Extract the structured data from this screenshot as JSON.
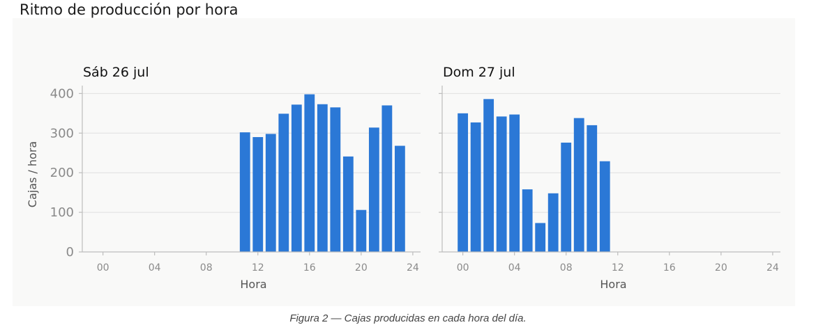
{
  "page": {
    "title": "Ritmo de producción por hora",
    "caption": "Figura 2 — Cajas producidas en cada hora del día."
  },
  "colors": {
    "bar": "#2b78d6",
    "grid": "#e0e0e0",
    "axis": "#bdbdbd",
    "panel_background": "#f9f9f8"
  },
  "chart_data": [
    {
      "type": "bar",
      "title": "Sáb 26 jul",
      "xlabel": "Hora",
      "ylabel": "Cajas / hora",
      "x_ticks": [
        "00",
        "04",
        "08",
        "12",
        "16",
        "20",
        "24"
      ],
      "x_tick_values": [
        0,
        4,
        8,
        12,
        16,
        20,
        24
      ],
      "y_ticks": [
        "0",
        "100",
        "200",
        "300",
        "400"
      ],
      "y_tick_values": [
        0,
        100,
        200,
        300,
        400
      ],
      "xlim": [
        -1.6,
        24.6
      ],
      "ylim": [
        0,
        420
      ],
      "grid": "horizontal",
      "bars": [
        {
          "hour": 11,
          "value": 302
        },
        {
          "hour": 12,
          "value": 290
        },
        {
          "hour": 13,
          "value": 298
        },
        {
          "hour": 14,
          "value": 349
        },
        {
          "hour": 15,
          "value": 372
        },
        {
          "hour": 16,
          "value": 398
        },
        {
          "hour": 17,
          "value": 373
        },
        {
          "hour": 18,
          "value": 365
        },
        {
          "hour": 19,
          "value": 241
        },
        {
          "hour": 20,
          "value": 106
        },
        {
          "hour": 21,
          "value": 314
        },
        {
          "hour": 22,
          "value": 370
        },
        {
          "hour": 23,
          "value": 268
        }
      ]
    },
    {
      "type": "bar",
      "title": "Dom 27 jul",
      "xlabel": "Hora",
      "ylabel": "",
      "x_ticks": [
        "00",
        "04",
        "08",
        "12",
        "16",
        "20",
        "24"
      ],
      "x_tick_values": [
        0,
        4,
        8,
        12,
        16,
        20,
        24
      ],
      "y_ticks": [],
      "y_tick_values": [
        0,
        100,
        200,
        300,
        400
      ],
      "xlim": [
        -1.6,
        24.6
      ],
      "ylim": [
        0,
        420
      ],
      "grid": "horizontal",
      "bars": [
        {
          "hour": 0,
          "value": 350
        },
        {
          "hour": 1,
          "value": 327
        },
        {
          "hour": 2,
          "value": 386
        },
        {
          "hour": 3,
          "value": 342
        },
        {
          "hour": 4,
          "value": 347
        },
        {
          "hour": 5,
          "value": 158
        },
        {
          "hour": 6,
          "value": 73
        },
        {
          "hour": 7,
          "value": 148
        },
        {
          "hour": 8,
          "value": 276
        },
        {
          "hour": 9,
          "value": 338
        },
        {
          "hour": 10,
          "value": 320
        },
        {
          "hour": 11,
          "value": 229
        }
      ]
    }
  ]
}
